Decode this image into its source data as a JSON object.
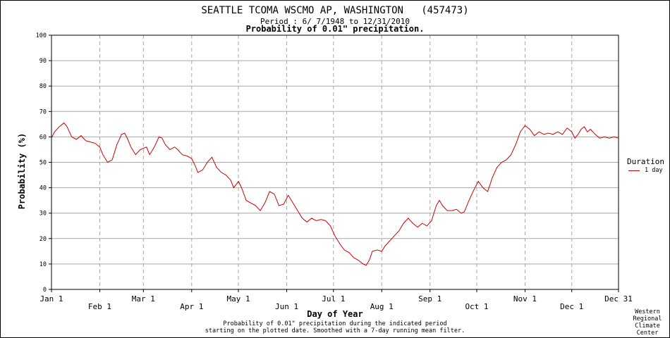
{
  "chart_data": {
    "type": "line",
    "title": "SEATTLE TCOMA WSCMO AP, WASHINGTON   (457473)",
    "period": "Period : 6/ 7/1948 to 12/31/2010",
    "subtitle": "Probability of 0.01\" precipitation.",
    "xlabel": "Day of Year",
    "ylabel": "Probability (%)",
    "ylim": [
      0,
      100
    ],
    "xlim": [
      1,
      365
    ],
    "yticks": [
      "0",
      "10",
      "20",
      "30",
      "40",
      "50",
      "60",
      "70",
      "80",
      "90",
      "100"
    ],
    "month_ticks": [
      {
        "label": "Jan 1",
        "day": 1,
        "row": "upper"
      },
      {
        "label": "Feb 1",
        "day": 32,
        "row": "lower"
      },
      {
        "label": "Mar 1",
        "day": 60,
        "row": "upper"
      },
      {
        "label": "Apr 1",
        "day": 91,
        "row": "lower"
      },
      {
        "label": "May 1",
        "day": 121,
        "row": "upper"
      },
      {
        "label": "Jun 1",
        "day": 152,
        "row": "lower"
      },
      {
        "label": "Jul 1",
        "day": 182,
        "row": "upper"
      },
      {
        "label": "Aug 1",
        "day": 213,
        "row": "lower"
      },
      {
        "label": "Sep 1",
        "day": 244,
        "row": "upper"
      },
      {
        "label": "Oct 1",
        "day": 274,
        "row": "lower"
      },
      {
        "label": "Nov 1",
        "day": 305,
        "row": "upper"
      },
      {
        "label": "Dec 1",
        "day": 335,
        "row": "lower"
      },
      {
        "label": "Dec 31",
        "day": 365,
        "row": "upper"
      }
    ],
    "grid": true,
    "legend": {
      "title": "Duration",
      "placement": "right"
    },
    "series": [
      {
        "name": "1 day",
        "color": "#d00000",
        "points": [
          [
            1,
            59.5
          ],
          [
            3,
            62
          ],
          [
            6,
            64
          ],
          [
            9,
            65.5
          ],
          [
            11,
            64
          ],
          [
            14,
            60
          ],
          [
            17,
            59
          ],
          [
            20,
            60.5
          ],
          [
            23,
            58.5
          ],
          [
            26,
            58
          ],
          [
            29,
            57.5
          ],
          [
            32,
            56
          ],
          [
            34,
            53
          ],
          [
            37,
            50
          ],
          [
            40,
            51
          ],
          [
            43,
            57
          ],
          [
            46,
            61
          ],
          [
            48,
            61.5
          ],
          [
            50,
            59
          ],
          [
            52,
            56
          ],
          [
            55,
            53
          ],
          [
            58,
            55
          ],
          [
            62,
            56
          ],
          [
            64,
            53
          ],
          [
            67,
            56
          ],
          [
            70,
            60
          ],
          [
            72,
            59.5
          ],
          [
            74,
            57
          ],
          [
            77,
            55
          ],
          [
            80,
            56
          ],
          [
            82,
            55
          ],
          [
            85,
            53
          ],
          [
            88,
            52.5
          ],
          [
            91,
            51.5
          ],
          [
            93,
            49
          ],
          [
            95,
            46
          ],
          [
            98,
            47
          ],
          [
            101,
            50
          ],
          [
            104,
            52
          ],
          [
            107,
            48
          ],
          [
            110,
            46
          ],
          [
            113,
            45
          ],
          [
            116,
            43
          ],
          [
            118,
            40
          ],
          [
            121,
            42.5
          ],
          [
            123,
            40
          ],
          [
            126,
            35
          ],
          [
            129,
            34
          ],
          [
            132,
            33
          ],
          [
            135,
            31
          ],
          [
            138,
            34
          ],
          [
            141,
            38.5
          ],
          [
            144,
            37.5
          ],
          [
            147,
            33
          ],
          [
            150,
            33.5
          ],
          [
            153,
            37
          ],
          [
            156,
            34
          ],
          [
            159,
            31
          ],
          [
            162,
            28
          ],
          [
            165,
            26.5
          ],
          [
            168,
            28
          ],
          [
            171,
            27
          ],
          [
            174,
            27.5
          ],
          [
            177,
            27
          ],
          [
            180,
            25
          ],
          [
            183,
            21
          ],
          [
            186,
            18
          ],
          [
            189,
            15.5
          ],
          [
            192,
            14.5
          ],
          [
            195,
            12.5
          ],
          [
            198,
            11.5
          ],
          [
            201,
            10
          ],
          [
            203,
            9.5
          ],
          [
            205,
            11.5
          ],
          [
            207,
            15
          ],
          [
            210,
            15.5
          ],
          [
            213,
            15
          ],
          [
            215,
            17
          ],
          [
            218,
            19
          ],
          [
            221,
            21
          ],
          [
            224,
            23
          ],
          [
            227,
            26
          ],
          [
            230,
            28
          ],
          [
            233,
            26
          ],
          [
            236,
            24.5
          ],
          [
            239,
            26
          ],
          [
            242,
            25
          ],
          [
            245,
            27
          ],
          [
            248,
            33
          ],
          [
            250,
            35
          ],
          [
            252,
            33
          ],
          [
            255,
            31
          ],
          [
            258,
            31
          ],
          [
            261,
            31.5
          ],
          [
            264,
            30
          ],
          [
            266,
            30.5
          ],
          [
            269,
            35
          ],
          [
            272,
            39
          ],
          [
            275,
            42.5
          ],
          [
            278,
            40
          ],
          [
            281,
            38.5
          ],
          [
            284,
            44
          ],
          [
            287,
            48
          ],
          [
            290,
            50
          ],
          [
            293,
            51
          ],
          [
            296,
            53
          ],
          [
            299,
            57
          ],
          [
            302,
            62
          ],
          [
            305,
            64.5
          ],
          [
            308,
            63
          ],
          [
            311,
            60.5
          ],
          [
            314,
            62
          ],
          [
            317,
            61
          ],
          [
            320,
            61.5
          ],
          [
            323,
            61
          ],
          [
            326,
            62
          ],
          [
            329,
            61
          ],
          [
            332,
            63.5
          ],
          [
            335,
            62
          ],
          [
            337,
            59.5
          ],
          [
            339,
            61
          ],
          [
            341,
            63
          ],
          [
            343,
            64
          ],
          [
            345,
            62
          ],
          [
            347,
            63
          ],
          [
            350,
            61
          ],
          [
            353,
            59.5
          ],
          [
            356,
            60
          ],
          [
            359,
            59.5
          ],
          [
            362,
            60
          ],
          [
            365,
            59.5
          ]
        ]
      }
    ]
  },
  "footnote": {
    "line1": "Probability of 0.01\" precipitation during the indicated period",
    "line2": "starting on the plotted date. Smoothed with a 7-day running mean filter."
  },
  "credit": {
    "line1": "Western",
    "line2": "Regional",
    "line3": "Climate",
    "line4": "Center"
  }
}
